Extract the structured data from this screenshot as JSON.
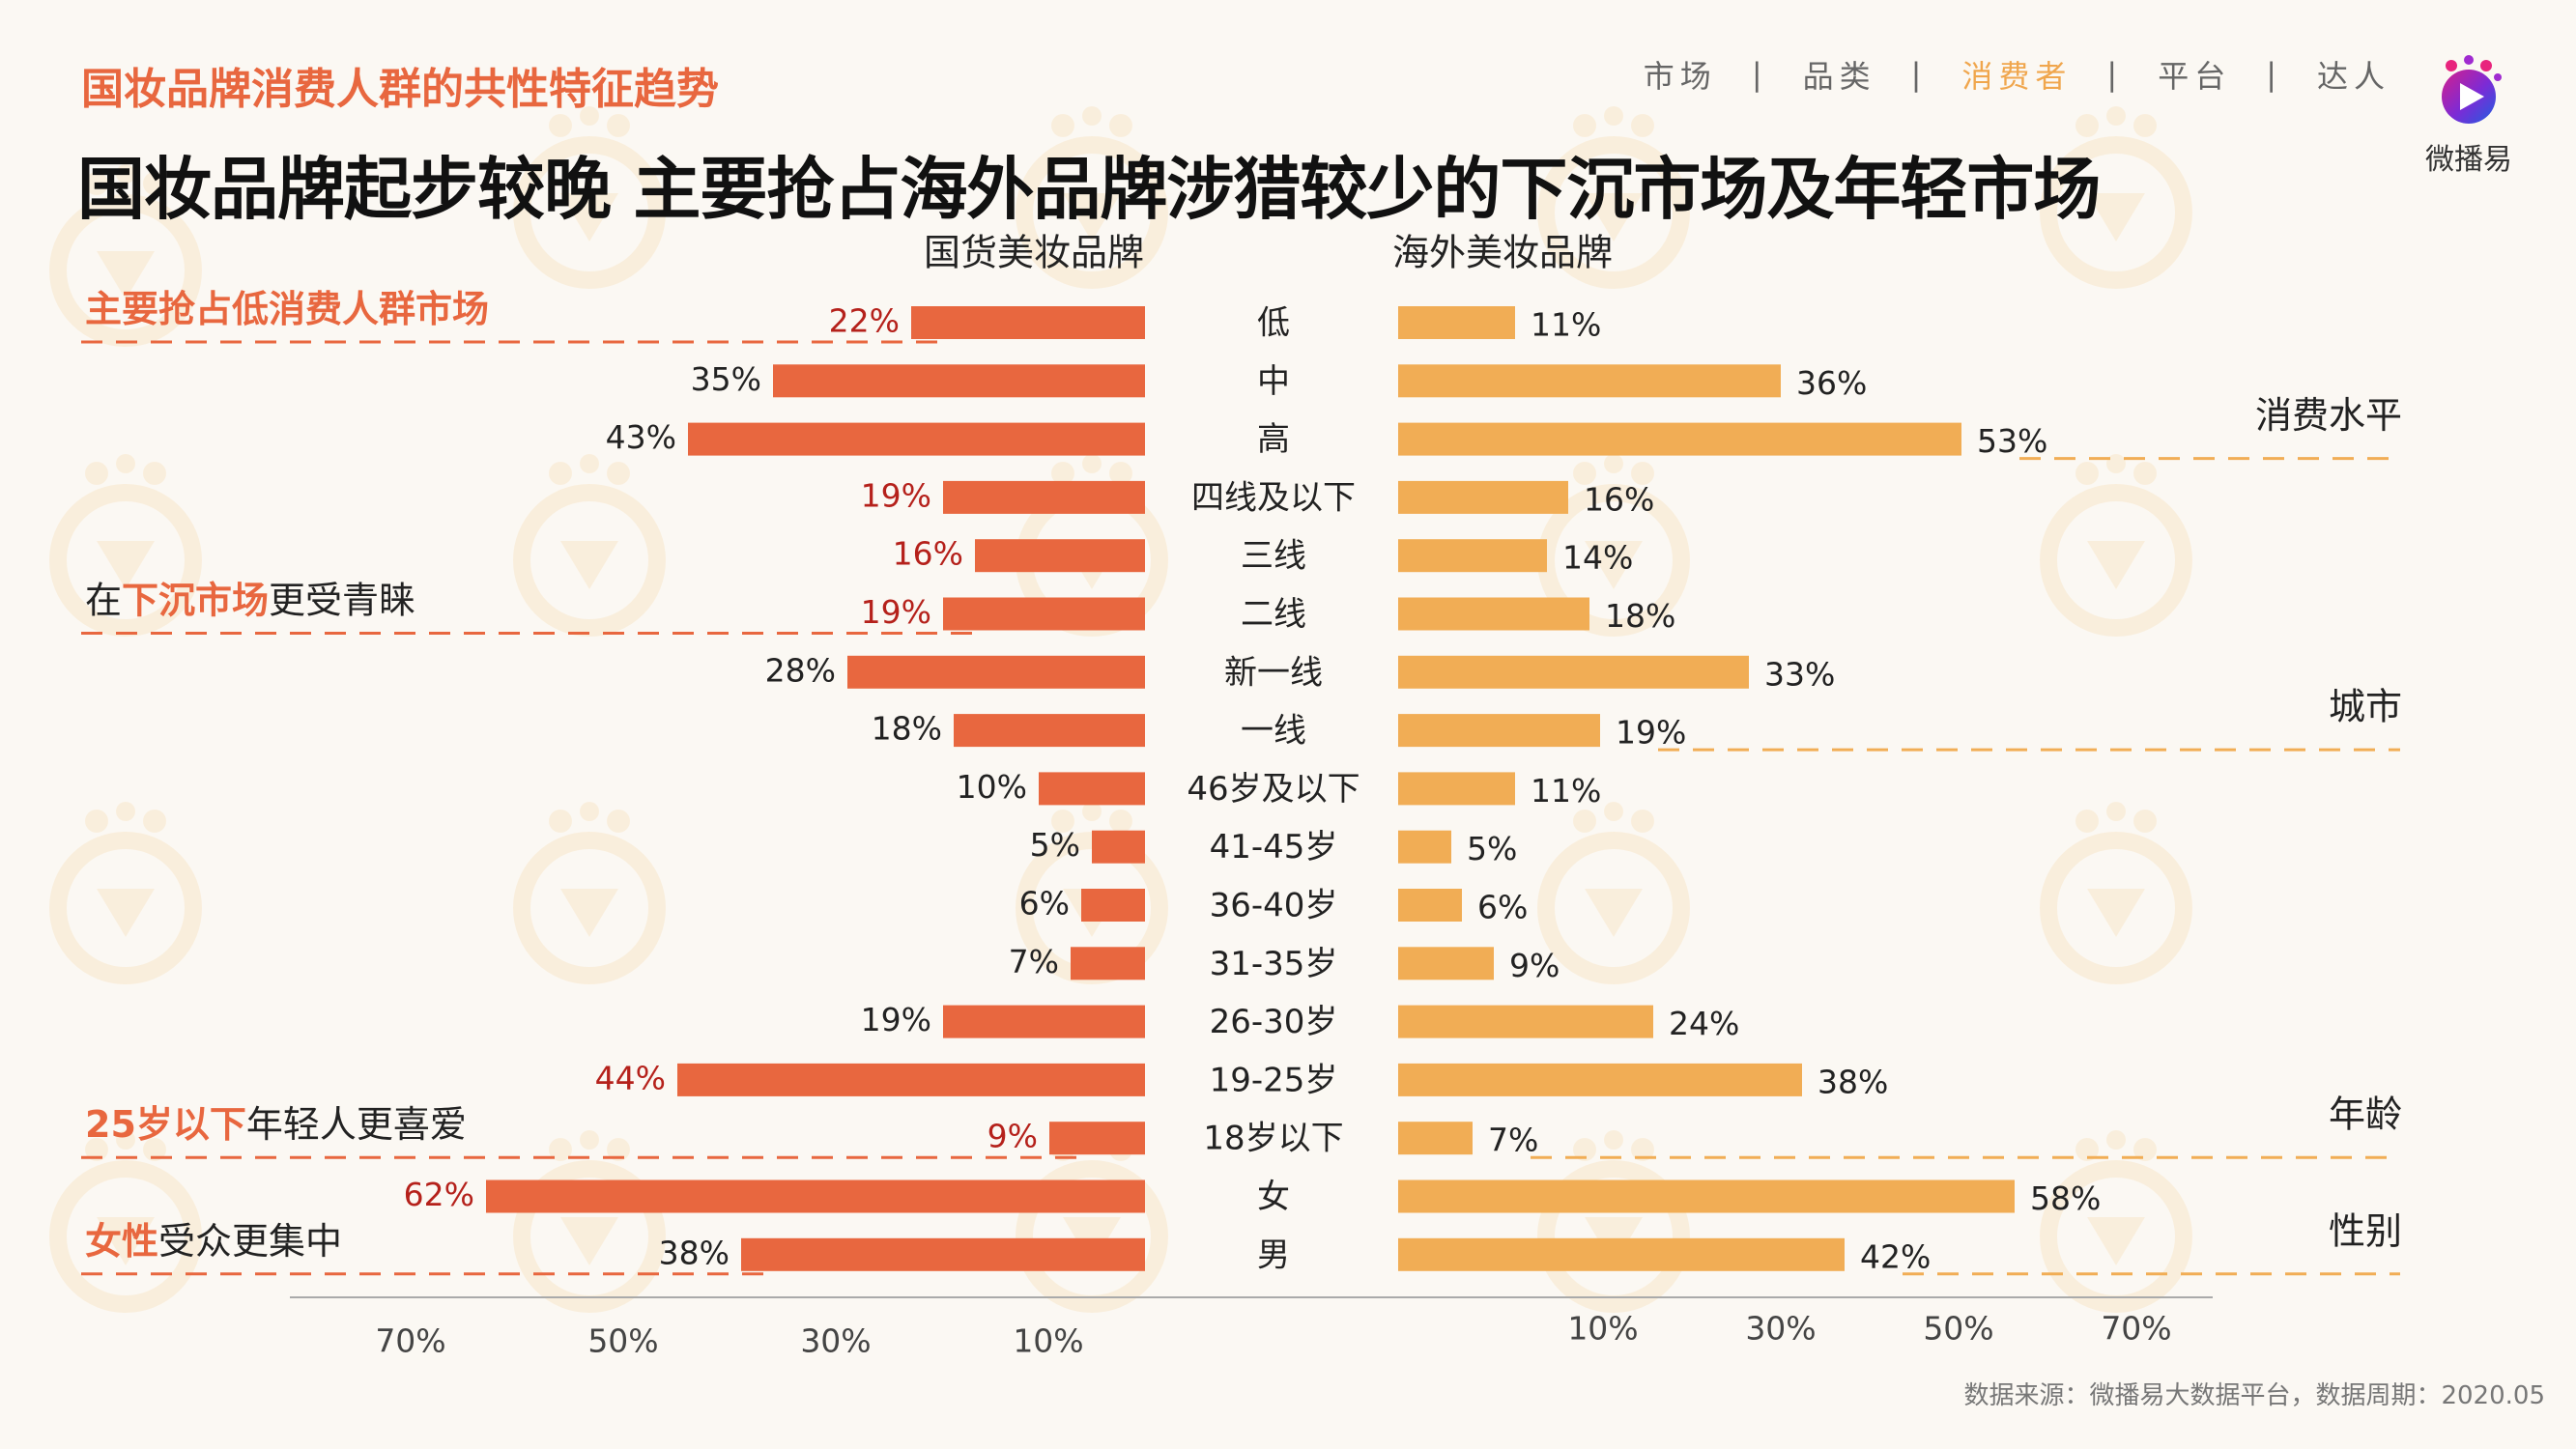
{
  "header": {
    "subtitle": "国妆品牌消费人群的共性特征趋势",
    "title": "国妆品牌起步较晚 主要抢占海外品牌涉猎较少的下沉市场及年轻市场",
    "nav": [
      {
        "label": "市场",
        "active": false
      },
      {
        "label": "品类",
        "active": false
      },
      {
        "label": "消费者",
        "active": true
      },
      {
        "label": "平台",
        "active": false
      },
      {
        "label": "达人",
        "active": false
      }
    ],
    "nav_separator": "|",
    "logo_text": "微播易",
    "logo_icon": "play-icon"
  },
  "source": "数据来源：微播易大数据平台，数据周期：2020.05",
  "colors": {
    "domestic_bar": "#e8673f",
    "overseas_bar": "#f1ad55",
    "highlight_text": "#e8673f",
    "highlight_value": "#b5211b",
    "dash": "#e8673f",
    "overseas_dash": "#f1ad55"
  },
  "chart_data": {
    "type": "bar",
    "orientation": "horizontal",
    "layout": "butterfly",
    "categories": [
      "低",
      "中",
      "高",
      "四线及以下",
      "三线",
      "二线",
      "新一线",
      "一线",
      "46岁及以下",
      "41-45岁",
      "36-40岁",
      "31-35岁",
      "26-30岁",
      "19-25岁",
      "18岁以下",
      "女",
      "男"
    ],
    "series": [
      {
        "name": "国货美妆品牌",
        "side": "left",
        "values": [
          22,
          35,
          43,
          19,
          16,
          19,
          28,
          18,
          10,
          5,
          6,
          7,
          19,
          44,
          9,
          62,
          38
        ],
        "labels": [
          "22%",
          "35%",
          "43%",
          "19%",
          "16%",
          "19%",
          "28%",
          "18%",
          "10%",
          "5%",
          "6%",
          "7%",
          "19%",
          "44%",
          "9%",
          "62%",
          "38%"
        ],
        "highlight": [
          true,
          false,
          false,
          true,
          true,
          true,
          false,
          false,
          false,
          false,
          false,
          false,
          false,
          true,
          true,
          true,
          false
        ]
      },
      {
        "name": "海外美妆品牌",
        "side": "right",
        "values": [
          11,
          36,
          53,
          16,
          14,
          18,
          33,
          19,
          11,
          5,
          6,
          9,
          24,
          38,
          7,
          58,
          42
        ],
        "labels": [
          "11%",
          "36%",
          "53%",
          "16%",
          "14%",
          "18%",
          "33%",
          "19%",
          "11%",
          "5%",
          "6%",
          "9%",
          "24%",
          "38%",
          "7%",
          "58%",
          "42%"
        ]
      }
    ],
    "left_axis_ticks": [
      "70%",
      "50%",
      "30%",
      "10%"
    ],
    "left_tick_values": [
      70,
      50,
      30,
      10
    ],
    "right_axis_ticks": [
      "10%",
      "30%",
      "50%",
      "70%"
    ],
    "right_tick_values": [
      10,
      30,
      50,
      70
    ],
    "groups": [
      {
        "name": "消费水平",
        "start": 0,
        "end": 2
      },
      {
        "name": "城市",
        "start": 3,
        "end": 7
      },
      {
        "name": "年龄",
        "start": 8,
        "end": 14
      },
      {
        "name": "性别",
        "start": 15,
        "end": 16
      }
    ],
    "annotations": [
      {
        "row": 0,
        "parts": [
          {
            "text": "主要抢占低消费人群市场",
            "hl": true
          }
        ]
      },
      {
        "row": 5,
        "parts": [
          {
            "text": "在",
            "hl": false
          },
          {
            "text": "下沉市场",
            "hl": true
          },
          {
            "text": "更受青睐",
            "hl": false
          }
        ]
      },
      {
        "row": 14,
        "parts": [
          {
            "text": "25岁以下",
            "hl": true
          },
          {
            "text": "年轻人更喜爱",
            "hl": false
          }
        ]
      },
      {
        "row": 16,
        "parts": [
          {
            "text": "女性",
            "hl": true
          },
          {
            "text": "受众更集中",
            "hl": false
          }
        ]
      }
    ],
    "grid": false,
    "legend": "top"
  }
}
